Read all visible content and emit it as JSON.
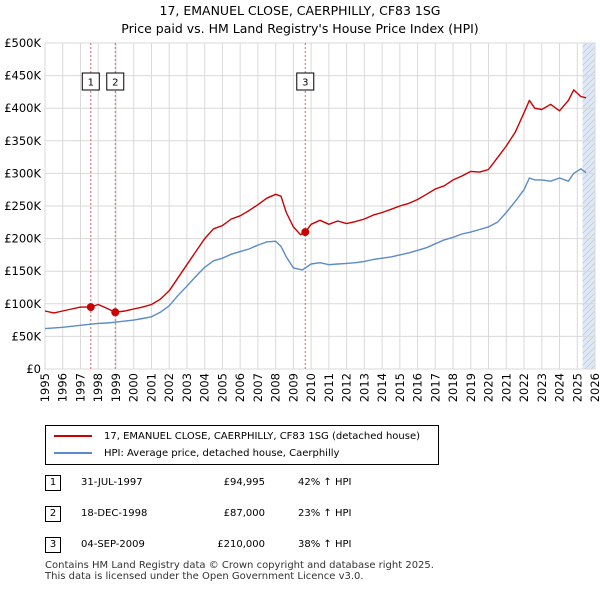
{
  "title_line1": "17, EMANUEL CLOSE, CAERPHILLY, CF83 1SG",
  "title_line2": "Price paid vs. HM Land Registry's House Price Index (HPI)",
  "colors": {
    "property": "#cc0000",
    "hpi": "#5b8bc9",
    "shade": "#dfe8f5",
    "vline": "#e06060"
  },
  "chart_data": {
    "type": "line",
    "title": "Price paid vs. HM Land Registry's House Price Index (HPI)",
    "xlabel": "",
    "ylabel": "",
    "xlim": [
      1995,
      2026
    ],
    "ylim": [
      0,
      500000
    ],
    "y_ticks": [
      0,
      50000,
      100000,
      150000,
      200000,
      250000,
      300000,
      350000,
      400000,
      450000,
      500000
    ],
    "y_tick_labels": [
      "£0",
      "£50K",
      "£100K",
      "£150K",
      "£200K",
      "£250K",
      "£300K",
      "£350K",
      "£400K",
      "£450K",
      "£500K"
    ],
    "x_ticks": [
      1995,
      1996,
      1997,
      1998,
      1999,
      2000,
      2001,
      2002,
      2003,
      2004,
      2005,
      2006,
      2007,
      2008,
      2009,
      2010,
      2011,
      2012,
      2013,
      2014,
      2015,
      2016,
      2017,
      2018,
      2019,
      2020,
      2021,
      2022,
      2023,
      2024,
      2025,
      2026
    ],
    "grid": true,
    "shaded_from": 2025.3,
    "series": [
      {
        "name": "17, EMANUEL CLOSE, CAERPHILLY, CF83 1SG (detached house)",
        "x": [
          1995.0,
          1995.5,
          1996.0,
          1996.5,
          1997.0,
          1997.58,
          1998.0,
          1998.5,
          1998.96,
          1999.5,
          2000.0,
          2000.5,
          2001.0,
          2001.5,
          2002.0,
          2002.5,
          2003.0,
          2003.5,
          2004.0,
          2004.5,
          2005.0,
          2005.5,
          2006.0,
          2006.5,
          2007.0,
          2007.5,
          2008.0,
          2008.3,
          2008.6,
          2009.0,
          2009.4,
          2009.67,
          2010.0,
          2010.5,
          2011.0,
          2011.5,
          2012.0,
          2012.5,
          2013.0,
          2013.5,
          2014.0,
          2014.5,
          2015.0,
          2015.5,
          2016.0,
          2016.5,
          2017.0,
          2017.5,
          2018.0,
          2018.5,
          2019.0,
          2019.5,
          2020.0,
          2020.5,
          2021.0,
          2021.5,
          2022.0,
          2022.3,
          2022.6,
          2023.0,
          2023.5,
          2024.0,
          2024.5,
          2024.8,
          2025.2,
          2025.5
        ],
        "y": [
          89000,
          86000,
          89000,
          92000,
          95000,
          94995,
          99000,
          93000,
          87000,
          89000,
          92000,
          95000,
          99000,
          107000,
          120000,
          140000,
          160000,
          180000,
          200000,
          215000,
          220000,
          230000,
          235000,
          243000,
          252000,
          262000,
          268000,
          265000,
          240000,
          218000,
          206000,
          210000,
          222000,
          228000,
          222000,
          227000,
          223000,
          226000,
          230000,
          236000,
          240000,
          245000,
          250000,
          254000,
          260000,
          268000,
          276000,
          281000,
          290000,
          296000,
          303000,
          302000,
          306000,
          324000,
          342000,
          363000,
          393000,
          412000,
          400000,
          398000,
          406000,
          396000,
          412000,
          428000,
          418000,
          416000
        ]
      },
      {
        "name": "HPI: Average price, detached house, Caerphilly",
        "x": [
          1995.0,
          1995.5,
          1996.0,
          1996.5,
          1997.0,
          1997.5,
          1998.0,
          1998.5,
          1999.0,
          1999.5,
          2000.0,
          2000.5,
          2001.0,
          2001.5,
          2002.0,
          2002.5,
          2003.0,
          2003.5,
          2004.0,
          2004.5,
          2005.0,
          2005.5,
          2006.0,
          2006.5,
          2007.0,
          2007.5,
          2008.0,
          2008.3,
          2008.6,
          2009.0,
          2009.5,
          2010.0,
          2010.5,
          2011.0,
          2011.5,
          2012.0,
          2012.5,
          2013.0,
          2013.5,
          2014.0,
          2014.5,
          2015.0,
          2015.5,
          2016.0,
          2016.5,
          2017.0,
          2017.5,
          2018.0,
          2018.5,
          2019.0,
          2019.5,
          2020.0,
          2020.5,
          2021.0,
          2021.5,
          2022.0,
          2022.3,
          2022.6,
          2023.0,
          2023.5,
          2024.0,
          2024.5,
          2024.8,
          2025.2,
          2025.5
        ],
        "y": [
          62000,
          63000,
          64000,
          65500,
          67000,
          68500,
          70000,
          70500,
          72000,
          73500,
          75000,
          77500,
          80000,
          87000,
          97000,
          113000,
          127000,
          142000,
          156000,
          166000,
          170000,
          176000,
          180000,
          184000,
          190000,
          195000,
          196000,
          188000,
          172000,
          155000,
          152000,
          161000,
          163000,
          160000,
          161000,
          162000,
          163000,
          165000,
          168000,
          170000,
          172000,
          175000,
          178000,
          182000,
          186000,
          192000,
          198000,
          202000,
          207000,
          210000,
          214000,
          218000,
          225000,
          240000,
          257000,
          275000,
          293000,
          290000,
          290000,
          288000,
          293000,
          288000,
          300000,
          307000,
          301000
        ]
      }
    ],
    "sales": [
      {
        "label": "1",
        "x": 1997.58,
        "y": 94995
      },
      {
        "label": "2",
        "x": 1998.96,
        "y": 87000
      },
      {
        "label": "3",
        "x": 2009.67,
        "y": 210000
      }
    ]
  },
  "legend": {
    "property_label": "17, EMANUEL CLOSE, CAERPHILLY, CF83 1SG (detached house)",
    "hpi_label": "HPI: Average price, detached house, Caerphilly"
  },
  "transactions": [
    {
      "num": "1",
      "date": "31-JUL-1997",
      "price": "£94,995",
      "hpi": "42% ↑ HPI"
    },
    {
      "num": "2",
      "date": "18-DEC-1998",
      "price": "£87,000",
      "hpi": "23% ↑ HPI"
    },
    {
      "num": "3",
      "date": "04-SEP-2009",
      "price": "£210,000",
      "hpi": "38% ↑ HPI"
    }
  ],
  "footer_line1": "Contains HM Land Registry data © Crown copyright and database right 2025.",
  "footer_line2": "This data is licensed under the Open Government Licence v3.0."
}
